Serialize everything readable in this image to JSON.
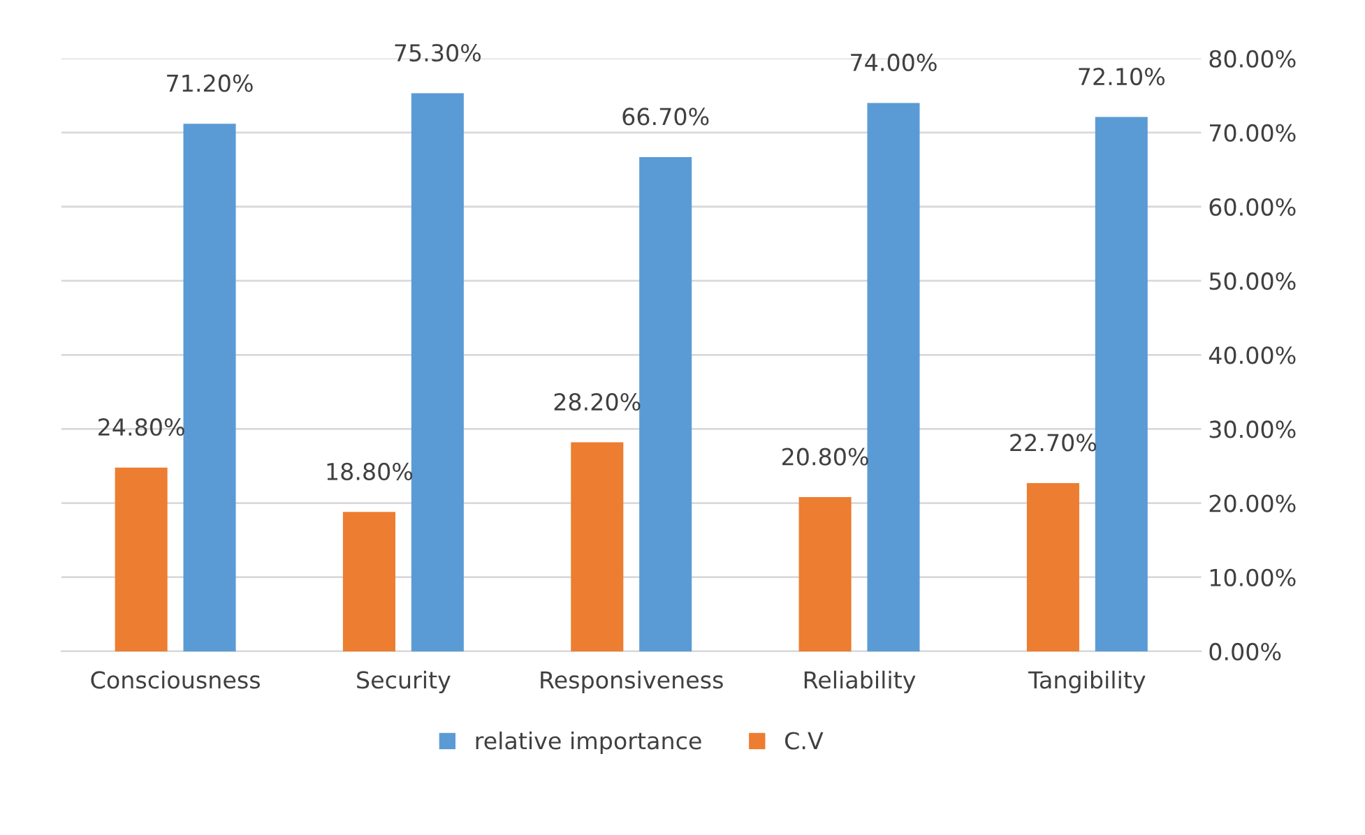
{
  "chart_data": {
    "type": "bar",
    "categories": [
      "Consciousness",
      "Security",
      "Responsiveness",
      "Reliability",
      "Tangibility"
    ],
    "series": [
      {
        "name": "C.V",
        "color": "#ed7d31",
        "values": [
          24.8,
          18.8,
          28.2,
          20.8,
          22.7
        ],
        "value_labels": [
          "24.80%",
          "18.80%",
          "28.20%",
          "20.80%",
          "22.70%"
        ]
      },
      {
        "name": "relative importance",
        "color": "#5b9bd5",
        "values": [
          71.2,
          75.3,
          66.7,
          74.0,
          72.1
        ],
        "value_labels": [
          "71.20%",
          "75.30%",
          "66.70%",
          "74.00%",
          "72.10%"
        ]
      }
    ],
    "ylim": [
      0,
      80
    ],
    "yticks": [
      {
        "value": 0,
        "label": "0.00%"
      },
      {
        "value": 10,
        "label": "10.00%"
      },
      {
        "value": 20,
        "label": "20.00%"
      },
      {
        "value": 30,
        "label": "30.00%"
      },
      {
        "value": 40,
        "label": "40.00%"
      },
      {
        "value": 50,
        "label": "50.00%"
      },
      {
        "value": 60,
        "label": "60.00%"
      },
      {
        "value": 70,
        "label": "70.00%"
      },
      {
        "value": 80,
        "label": "80.00%"
      }
    ],
    "grid": "y",
    "legend": "bottom"
  }
}
